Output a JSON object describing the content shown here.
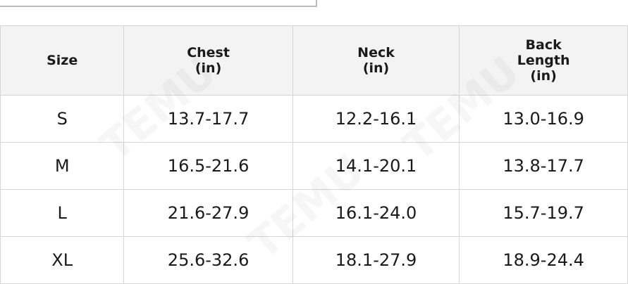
{
  "table": {
    "headers": [
      [
        "Size"
      ],
      [
        "Chest",
        "(in)"
      ],
      [
        "Neck",
        "(in)"
      ],
      [
        "Back",
        "Length",
        "(in)"
      ]
    ],
    "rows": [
      [
        "S",
        "13.7-17.7",
        "12.2-16.1",
        "13.0-16.9"
      ],
      [
        "M",
        "16.5-21.6",
        "14.1-20.1",
        "13.8-17.7"
      ],
      [
        "L",
        "21.6-27.9",
        "16.1-24.0",
        "15.7-19.7"
      ],
      [
        "XL",
        "25.6-32.6",
        "18.1-27.9",
        "18.9-24.4"
      ]
    ]
  },
  "watermark": "TEMU"
}
